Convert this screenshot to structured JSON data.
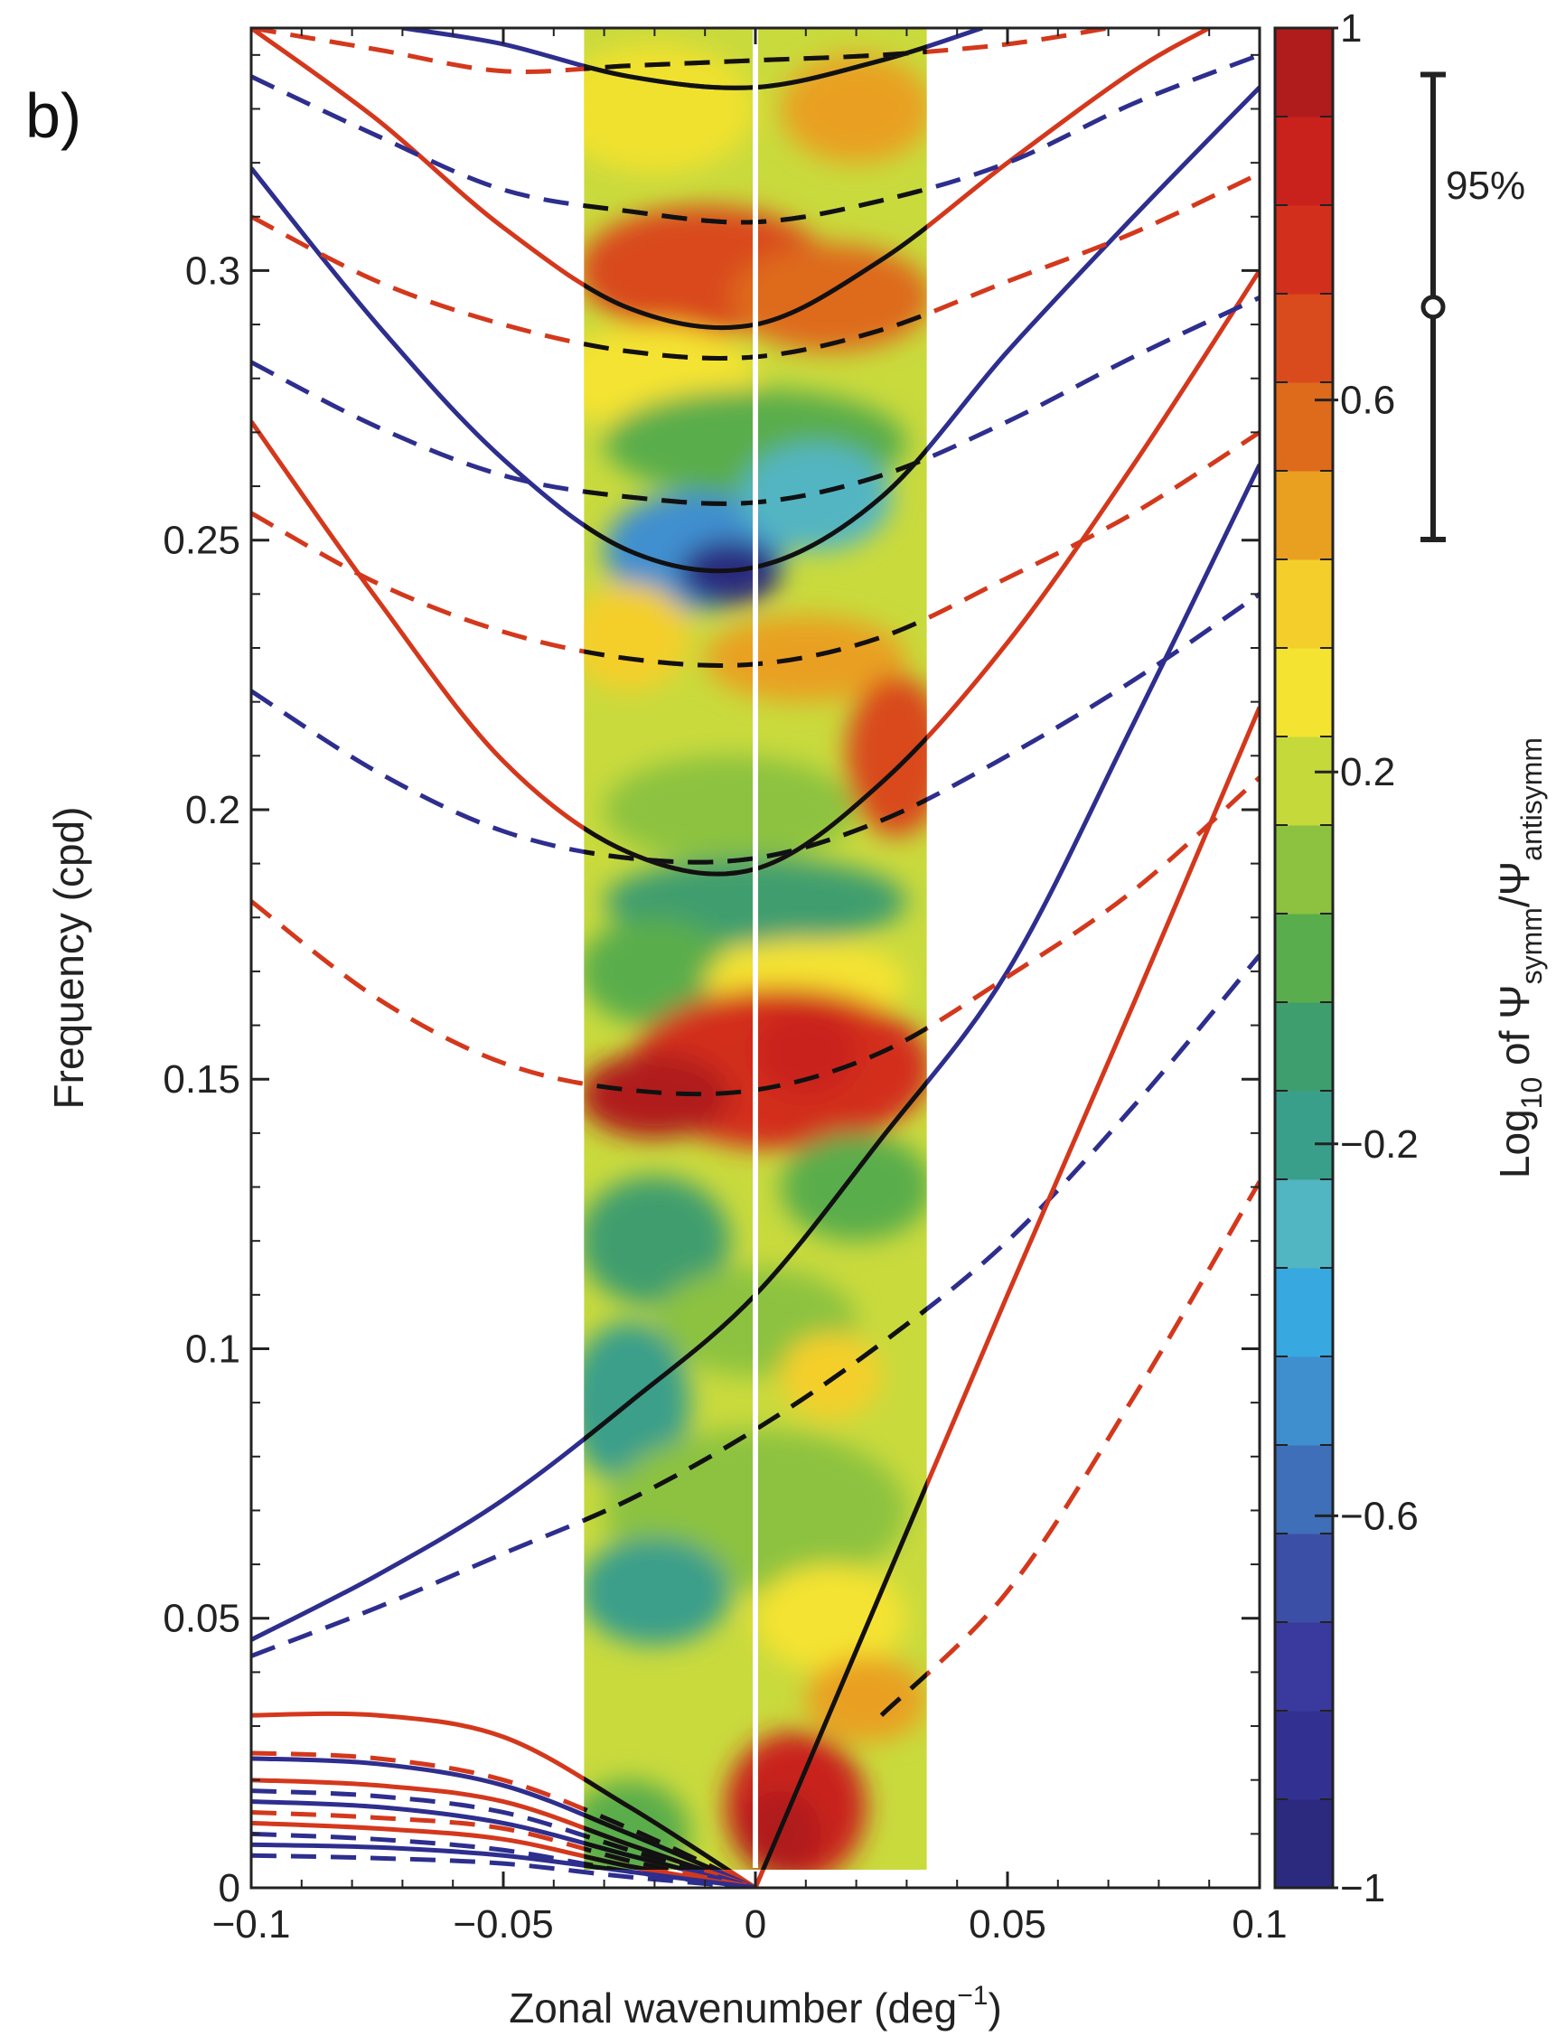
{
  "panel_label": "b)",
  "significance_label": "95%",
  "chart_data": {
    "type": "heatmap",
    "title": "",
    "xlabel": "Zonal wavenumber (deg",
    "xlabel_sup": "−1",
    "xlabel_close": ")",
    "ylabel": "Frequency (cpd)",
    "xlim": [
      -0.1,
      0.1
    ],
    "ylim": [
      0,
      0.345
    ],
    "x_tick_labels": [
      "−0.1",
      "−0.05",
      "0",
      "0.05",
      "0.1"
    ],
    "x_ticks": [
      -0.1,
      -0.05,
      0,
      0.05,
      0.1
    ],
    "y_tick_labels": [
      "0",
      "0.05",
      "0.1",
      "0.15",
      "0.2",
      "0.25",
      "0.3"
    ],
    "y_ticks": [
      0,
      0.05,
      0.1,
      0.15,
      0.2,
      0.25,
      0.3
    ],
    "heatmap_x_range": [
      -0.034,
      0.034
    ],
    "colorbar": {
      "label_main": "Log",
      "label_sub1": "10",
      "label_mid": " of Ψ",
      "label_sub2": "symm",
      "label_slash": "/Ψ",
      "label_sub3": "antisymm",
      "range": [
        -1,
        1
      ],
      "tick_labels": [
        "1",
        "0.6",
        "0.2",
        "−0.2",
        "−0.6",
        "−1"
      ],
      "ticks": [
        1,
        0.6,
        0.2,
        -0.2,
        -0.6,
        -1
      ],
      "colors": [
        "#2b2a7e",
        "#323191",
        "#3a3a9e",
        "#3c4fa6",
        "#3e6fb8",
        "#3f8fcf",
        "#37a8e0",
        "#52b5c2",
        "#3a9f8a",
        "#3f9e6e",
        "#5aad4c",
        "#8cc23f",
        "#c5d93b",
        "#f4e331",
        "#f4cf2b",
        "#e9a020",
        "#de6a1c",
        "#d94a1c",
        "#d32f1d",
        "#c9211c",
        "#b01c1c"
      ]
    },
    "significance_bar": {
      "center": 0.7,
      "low": 0.45,
      "high": 0.95
    },
    "series": [
      {
        "style": "solid",
        "color": "#2e2e8f",
        "points": [
          [
            -0.1,
            0.046
          ],
          [
            -0.075,
            0.058
          ],
          [
            -0.05,
            0.072
          ],
          [
            -0.025,
            0.09
          ],
          [
            0,
            0.11
          ],
          [
            0.025,
            0.139
          ],
          [
            0.05,
            0.17
          ],
          [
            0.075,
            0.216
          ],
          [
            0.1,
            0.264
          ]
        ]
      },
      {
        "style": "dashed",
        "color": "#2e2e8f",
        "points": [
          [
            -0.1,
            0.043
          ],
          [
            -0.075,
            0.052
          ],
          [
            -0.05,
            0.062
          ],
          [
            -0.025,
            0.072
          ],
          [
            0,
            0.085
          ],
          [
            0.025,
            0.101
          ],
          [
            0.05,
            0.12
          ],
          [
            0.075,
            0.145
          ],
          [
            0.1,
            0.173
          ]
        ]
      },
      {
        "style": "solid",
        "color": "#d4381c",
        "points": [
          [
            0,
            0.0
          ],
          [
            0.025,
            0.055
          ],
          [
            0.05,
            0.11
          ],
          [
            0.075,
            0.164
          ],
          [
            0.1,
            0.219
          ]
        ]
      },
      {
        "style": "dashed",
        "color": "#d4381c",
        "points": [
          [
            0.025,
            0.032
          ],
          [
            0.05,
            0.055
          ],
          [
            0.075,
            0.091
          ],
          [
            0.1,
            0.131
          ]
        ]
      },
      {
        "style": "dashed",
        "color": "#d4381c",
        "points": [
          [
            -0.1,
            0.183
          ],
          [
            -0.075,
            0.165
          ],
          [
            -0.05,
            0.153
          ],
          [
            -0.025,
            0.148
          ],
          [
            0,
            0.148
          ],
          [
            0.025,
            0.155
          ],
          [
            0.05,
            0.169
          ],
          [
            0.075,
            0.185
          ],
          [
            0.1,
            0.206
          ]
        ]
      },
      {
        "style": "solid",
        "color": "#d4381c",
        "points": [
          [
            -0.1,
            0.272
          ],
          [
            -0.075,
            0.239
          ],
          [
            -0.05,
            0.209
          ],
          [
            -0.025,
            0.192
          ],
          [
            0,
            0.189
          ],
          [
            0.025,
            0.205
          ],
          [
            0.05,
            0.231
          ],
          [
            0.075,
            0.264
          ],
          [
            0.1,
            0.3
          ]
        ]
      },
      {
        "style": "dashed",
        "color": "#2e2e8f",
        "points": [
          [
            -0.1,
            0.222
          ],
          [
            -0.075,
            0.207
          ],
          [
            -0.05,
            0.196
          ],
          [
            -0.025,
            0.191
          ],
          [
            0,
            0.191
          ],
          [
            0.025,
            0.198
          ],
          [
            0.05,
            0.21
          ],
          [
            0.075,
            0.224
          ],
          [
            0.1,
            0.24
          ]
        ]
      },
      {
        "style": "dashed",
        "color": "#d4381c",
        "points": [
          [
            -0.1,
            0.255
          ],
          [
            -0.075,
            0.242
          ],
          [
            -0.05,
            0.233
          ],
          [
            -0.025,
            0.228
          ],
          [
            0,
            0.227
          ],
          [
            0.025,
            0.232
          ],
          [
            0.05,
            0.243
          ],
          [
            0.075,
            0.255
          ],
          [
            0.1,
            0.27
          ]
        ]
      },
      {
        "style": "solid",
        "color": "#2e2e8f",
        "points": [
          [
            -0.1,
            0.319
          ],
          [
            -0.075,
            0.29
          ],
          [
            -0.05,
            0.265
          ],
          [
            -0.025,
            0.248
          ],
          [
            0,
            0.245
          ],
          [
            0.025,
            0.258
          ],
          [
            0.05,
            0.285
          ],
          [
            0.075,
            0.31
          ],
          [
            0.1,
            0.334
          ]
        ]
      },
      {
        "style": "dashed",
        "color": "#2e2e8f",
        "points": [
          [
            -0.1,
            0.283
          ],
          [
            -0.075,
            0.271
          ],
          [
            -0.05,
            0.262
          ],
          [
            -0.025,
            0.258
          ],
          [
            0,
            0.257
          ],
          [
            0.025,
            0.262
          ],
          [
            0.05,
            0.272
          ],
          [
            0.075,
            0.284
          ],
          [
            0.1,
            0.295
          ]
        ]
      },
      {
        "style": "dashed",
        "color": "#d4381c",
        "points": [
          [
            -0.1,
            0.31
          ],
          [
            -0.075,
            0.298
          ],
          [
            -0.05,
            0.29
          ],
          [
            -0.025,
            0.285
          ],
          [
            0,
            0.284
          ],
          [
            0.025,
            0.289
          ],
          [
            0.05,
            0.298
          ],
          [
            0.075,
            0.307
          ],
          [
            0.1,
            0.318
          ]
        ]
      },
      {
        "style": "solid",
        "color": "#d4381c",
        "points": [
          [
            -0.1,
            0.345
          ],
          [
            -0.075,
            0.328
          ],
          [
            -0.05,
            0.308
          ],
          [
            -0.025,
            0.293
          ],
          [
            0,
            0.29
          ],
          [
            0.025,
            0.302
          ],
          [
            0.05,
            0.32
          ],
          [
            0.075,
            0.337
          ],
          [
            0.09,
            0.345
          ]
        ]
      },
      {
        "style": "dashed",
        "color": "#2e2e8f",
        "points": [
          [
            -0.1,
            0.336
          ],
          [
            -0.075,
            0.325
          ],
          [
            -0.05,
            0.315
          ],
          [
            -0.025,
            0.311
          ],
          [
            0,
            0.309
          ],
          [
            0.025,
            0.313
          ],
          [
            0.05,
            0.32
          ],
          [
            0.075,
            0.331
          ],
          [
            0.1,
            0.34
          ]
        ]
      },
      {
        "style": "solid",
        "color": "#2e2e8f",
        "points": [
          [
            -0.07,
            0.345
          ],
          [
            -0.05,
            0.342
          ],
          [
            -0.025,
            0.336
          ],
          [
            0,
            0.334
          ],
          [
            0.025,
            0.339
          ],
          [
            0.045,
            0.345
          ]
        ]
      },
      {
        "style": "dashed",
        "color": "#d4381c",
        "points": [
          [
            -0.1,
            0.345
          ],
          [
            -0.075,
            0.341
          ],
          [
            -0.05,
            0.337
          ],
          [
            -0.025,
            0.338
          ],
          [
            0,
            0.339
          ],
          [
            0.025,
            0.34
          ],
          [
            0.05,
            0.342
          ],
          [
            0.07,
            0.345
          ]
        ]
      },
      {
        "style": "solid",
        "color": "#d4381c",
        "points": [
          [
            -0.1,
            0.032
          ],
          [
            -0.075,
            0.032
          ],
          [
            -0.05,
            0.028
          ],
          [
            -0.025,
            0.015
          ],
          [
            0,
            0.0
          ]
        ]
      },
      {
        "style": "dashed",
        "color": "#d4381c",
        "points": [
          [
            -0.1,
            0.025
          ],
          [
            -0.075,
            0.024
          ],
          [
            -0.05,
            0.02
          ],
          [
            -0.025,
            0.011
          ],
          [
            0,
            0.0
          ]
        ]
      },
      {
        "style": "solid",
        "color": "#2e2e8f",
        "points": [
          [
            -0.1,
            0.024
          ],
          [
            -0.075,
            0.023
          ],
          [
            -0.05,
            0.019
          ],
          [
            -0.025,
            0.01
          ],
          [
            0,
            0.0
          ]
        ]
      },
      {
        "style": "solid",
        "color": "#d4381c",
        "points": [
          [
            -0.1,
            0.02
          ],
          [
            -0.075,
            0.019
          ],
          [
            -0.05,
            0.016
          ],
          [
            -0.025,
            0.008
          ],
          [
            0,
            0.0
          ]
        ]
      },
      {
        "style": "dashed",
        "color": "#2e2e8f",
        "points": [
          [
            -0.1,
            0.018
          ],
          [
            -0.075,
            0.017
          ],
          [
            -0.05,
            0.014
          ],
          [
            -0.025,
            0.007
          ],
          [
            0,
            0.0
          ]
        ]
      },
      {
        "style": "solid",
        "color": "#2e2e8f",
        "points": [
          [
            -0.1,
            0.016
          ],
          [
            -0.075,
            0.015
          ],
          [
            -0.05,
            0.012
          ],
          [
            -0.025,
            0.006
          ],
          [
            0,
            0.0
          ]
        ]
      },
      {
        "style": "dashed",
        "color": "#d4381c",
        "points": [
          [
            -0.1,
            0.014
          ],
          [
            -0.075,
            0.013
          ],
          [
            -0.05,
            0.011
          ],
          [
            -0.025,
            0.005
          ],
          [
            0,
            0.0
          ]
        ]
      },
      {
        "style": "solid",
        "color": "#d4381c",
        "points": [
          [
            -0.1,
            0.012
          ],
          [
            -0.075,
            0.011
          ],
          [
            -0.05,
            0.009
          ],
          [
            -0.025,
            0.004
          ],
          [
            0,
            0.0
          ]
        ]
      },
      {
        "style": "dashed",
        "color": "#2e2e8f",
        "points": [
          [
            -0.1,
            0.01
          ],
          [
            -0.075,
            0.009
          ],
          [
            -0.05,
            0.007
          ],
          [
            -0.025,
            0.003
          ],
          [
            0,
            0.0
          ]
        ]
      },
      {
        "style": "solid",
        "color": "#2e2e8f",
        "points": [
          [
            -0.1,
            0.008
          ],
          [
            -0.075,
            0.0075
          ],
          [
            -0.05,
            0.006
          ],
          [
            -0.025,
            0.003
          ],
          [
            0,
            0.0
          ]
        ]
      },
      {
        "style": "dashed",
        "color": "#2e2e8f",
        "points": [
          [
            -0.1,
            0.006
          ],
          [
            -0.075,
            0.0055
          ],
          [
            -0.05,
            0.0045
          ],
          [
            -0.025,
            0.002
          ],
          [
            0,
            0.0
          ]
        ]
      }
    ]
  }
}
